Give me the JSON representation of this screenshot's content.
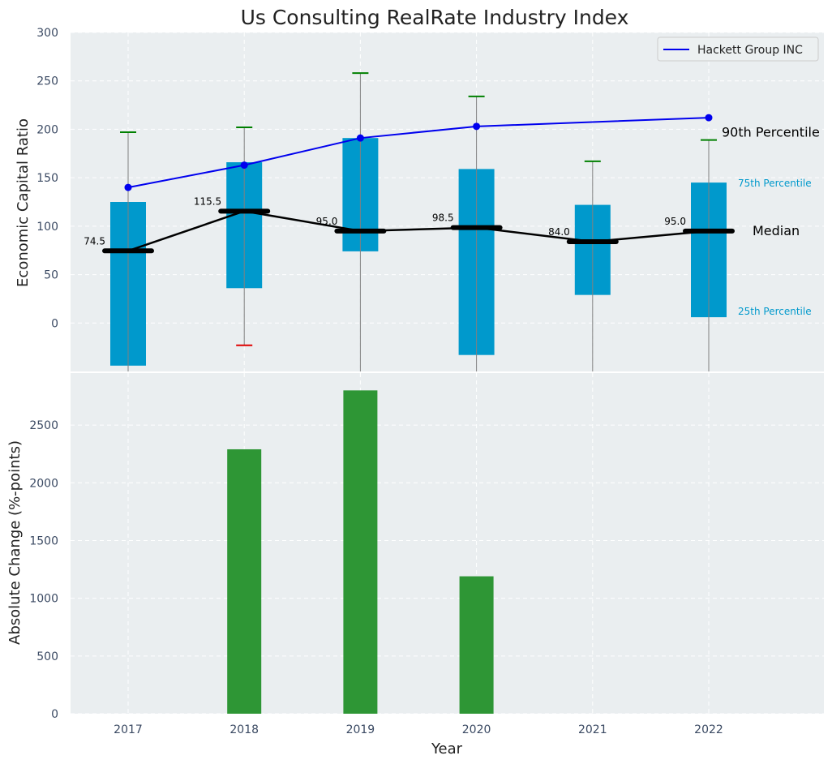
{
  "chart_data": {
    "title": "Us Consulting RealRate Industry Index",
    "xlabel": "Year",
    "years": [
      "2017",
      "2018",
      "2019",
      "2020",
      "2021",
      "2022"
    ],
    "top": {
      "type": "box",
      "ylabel": "Economic Capital Ratio",
      "ylim": [
        -50,
        300
      ],
      "yticks": [
        0,
        50,
        100,
        150,
        200,
        250,
        300
      ],
      "boxes": [
        {
          "year": "2017",
          "q1": -44,
          "q3": 125,
          "median": 74.5,
          "median_label": "74.5",
          "whisker_low": -50,
          "whisker_high": 197,
          "high_cap_color": "#008000",
          "low_cap_color": null
        },
        {
          "year": "2018",
          "q1": 36,
          "q3": 166,
          "median": 115.5,
          "median_label": "115.5",
          "whisker_low": -23,
          "whisker_high": 202,
          "high_cap_color": "#008000",
          "low_cap_color": "#e00000"
        },
        {
          "year": "2019",
          "q1": 74,
          "q3": 191,
          "median": 95.0,
          "median_label": "95.0",
          "whisker_low": -50,
          "whisker_high": 258,
          "high_cap_color": "#008000",
          "low_cap_color": null
        },
        {
          "year": "2020",
          "q1": -33,
          "q3": 159,
          "median": 98.5,
          "median_label": "98.5",
          "whisker_low": -50,
          "whisker_high": 234,
          "high_cap_color": "#008000",
          "low_cap_color": null
        },
        {
          "year": "2021",
          "q1": 29,
          "q3": 122,
          "median": 84.0,
          "median_label": "84.0",
          "whisker_low": -50,
          "whisker_high": 167,
          "high_cap_color": "#008000",
          "low_cap_color": null
        },
        {
          "year": "2022",
          "q1": 6,
          "q3": 145,
          "median": 95.0,
          "median_label": "95.0",
          "whisker_low": -50,
          "whisker_high": 189,
          "high_cap_color": "#008000",
          "low_cap_color": null
        }
      ],
      "company_series": {
        "name": "Hackett Group INC",
        "values": [
          140,
          163,
          191,
          203,
          null,
          212
        ],
        "color": "#0000ee"
      },
      "annotations": {
        "p90": "90th Percentile",
        "p75": "75th Percentile",
        "median": "Median",
        "p25": "25th Percentile"
      },
      "legend_position": "top-right",
      "box_color": "#0099cc"
    },
    "bottom": {
      "type": "bar",
      "ylabel": "Absolute Change (%-points)",
      "ylim": [
        0,
        2950
      ],
      "yticks": [
        0,
        500,
        1000,
        1500,
        2000,
        2500
      ],
      "values": [
        0,
        2290,
        2800,
        1190,
        0,
        0
      ],
      "color": "#2e9635"
    }
  }
}
